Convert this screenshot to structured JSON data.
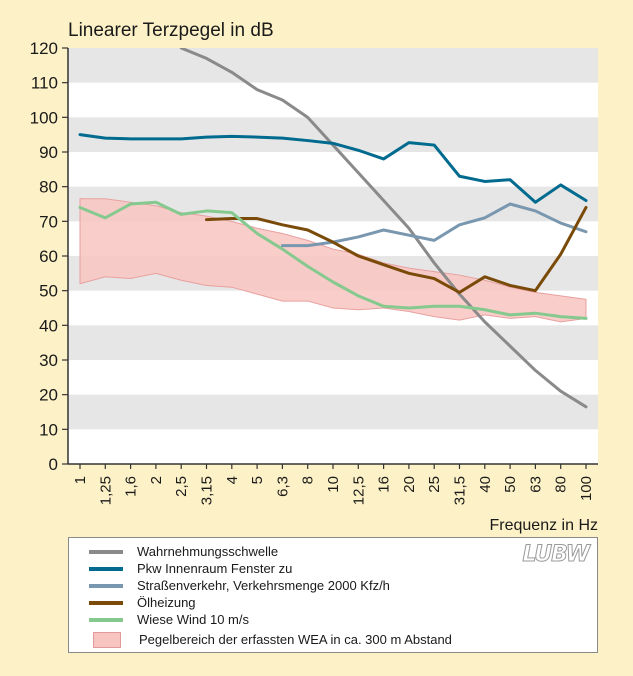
{
  "chart_data": {
    "type": "line",
    "title": "Linearer Terzpegel in dB",
    "xlabel": "Frequenz in Hz",
    "ylabel": "",
    "ylim": [
      0,
      120
    ],
    "yticks": [
      0,
      10,
      20,
      30,
      40,
      50,
      60,
      70,
      80,
      90,
      100,
      110,
      120
    ],
    "categories": [
      "1",
      "1,25",
      "1,6",
      "2",
      "2,5",
      "3,15",
      "4",
      "5",
      "6,3",
      "8",
      "10",
      "12,5",
      "16",
      "20",
      "25",
      "31,5",
      "40",
      "50",
      "63",
      "80",
      "100"
    ],
    "series": [
      {
        "name": "Wahrnehmungsschwelle",
        "color": "#8a8a8a",
        "values": [
          null,
          null,
          null,
          null,
          120,
          117,
          113,
          108,
          105,
          100,
          92,
          84,
          76,
          68,
          58,
          49,
          41,
          34,
          27,
          21,
          16.5
        ]
      },
      {
        "name": "Pkw Innenraum Fenster zu",
        "color": "#006b8f",
        "values": [
          95,
          94,
          93.8,
          93.8,
          93.8,
          94.3,
          94.5,
          94.3,
          94,
          93.3,
          92.5,
          90.5,
          88,
          92.7,
          92,
          83,
          81.5,
          82,
          75.5,
          80.5,
          76
        ]
      },
      {
        "name": "Straßenverkehr, Verkehrsmenge 2000 Kfz/h",
        "color": "#7a97b0",
        "values": [
          null,
          null,
          null,
          null,
          null,
          null,
          null,
          null,
          63,
          63,
          64,
          65.5,
          67.5,
          66,
          64.5,
          69,
          71,
          75,
          73,
          69.5,
          67
        ]
      },
      {
        "name": "Ölheizung",
        "color": "#7a4a08",
        "values": [
          null,
          null,
          null,
          null,
          null,
          70.5,
          70.8,
          70.8,
          69,
          67.5,
          64,
          60,
          57.5,
          55,
          53.5,
          49.5,
          54,
          51.5,
          50,
          60.5,
          74
        ]
      },
      {
        "name": "Wiese Wind 10 m/s",
        "color": "#86c98f",
        "values": [
          74,
          71,
          75,
          75.5,
          72,
          73,
          72.5,
          66.5,
          62,
          57,
          52.5,
          48.5,
          45.5,
          45,
          45.5,
          45.5,
          44.5,
          43,
          43.5,
          42.5,
          42
        ]
      }
    ],
    "band": {
      "name": "Pegelbereich der erfassten WEA in ca. 300 m Abstand",
      "upper": [
        76.5,
        76.5,
        75.5,
        74.5,
        72.5,
        71.5,
        70,
        68,
        66.5,
        64.5,
        62,
        60.5,
        58,
        56.5,
        55.5,
        54.5,
        53,
        51,
        49.5,
        48.5,
        47.5
      ],
      "lower": [
        52,
        54,
        53.5,
        55,
        53,
        51.5,
        51,
        49,
        47,
        47,
        45,
        44.5,
        45,
        44,
        42.5,
        41.5,
        43,
        42,
        42.5,
        41,
        42
      ]
    },
    "legend_position": "bottom",
    "grid": "alternating horizontal bands"
  },
  "legend": {
    "items": [
      "Wahrnehmungsschwelle",
      "Pkw Innenraum Fenster zu",
      "Straßenverkehr, Verkehrsmenge 2000 Kfz/h",
      "Ölheizung",
      "Wiese Wind 10 m/s"
    ],
    "band_label": "Pegelbereich der erfassten WEA in ca. 300 m Abstand",
    "logo": "LUBW"
  }
}
